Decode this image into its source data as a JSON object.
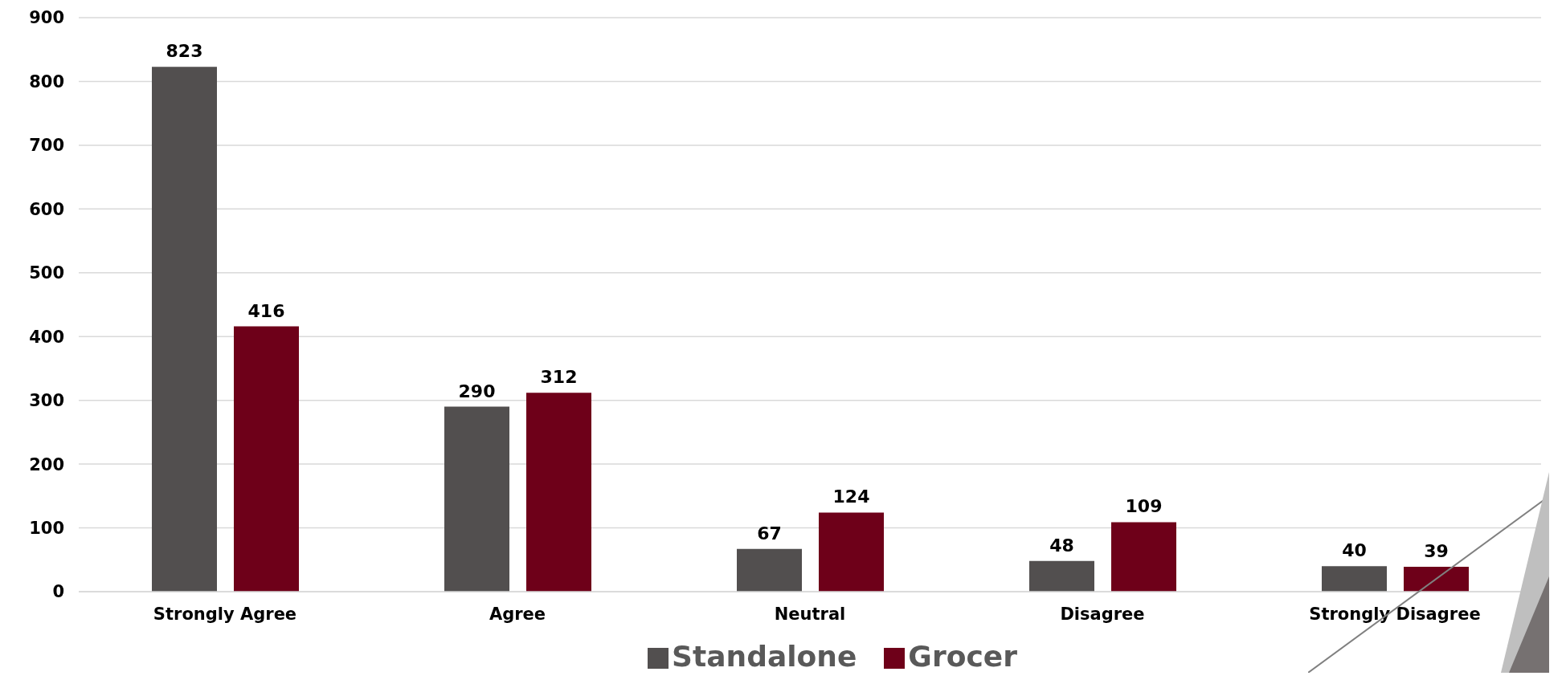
{
  "chart_data": {
    "type": "bar",
    "categories": [
      "Strongly Agree",
      "Agree",
      "Neutral",
      "Disagree",
      "Strongly Disagree"
    ],
    "series": [
      {
        "name": "Standalone",
        "color": "#524f4f",
        "values": [
          823,
          290,
          67,
          48,
          40
        ]
      },
      {
        "name": "Grocer",
        "color": "#6e0019",
        "values": [
          416,
          312,
          124,
          109,
          39
        ]
      }
    ],
    "ylim": [
      0,
      900
    ],
    "yticks": [
      0,
      100,
      200,
      300,
      400,
      500,
      600,
      700,
      800,
      900
    ],
    "grid": "y",
    "legend": "bottom",
    "data_labels": true
  }
}
